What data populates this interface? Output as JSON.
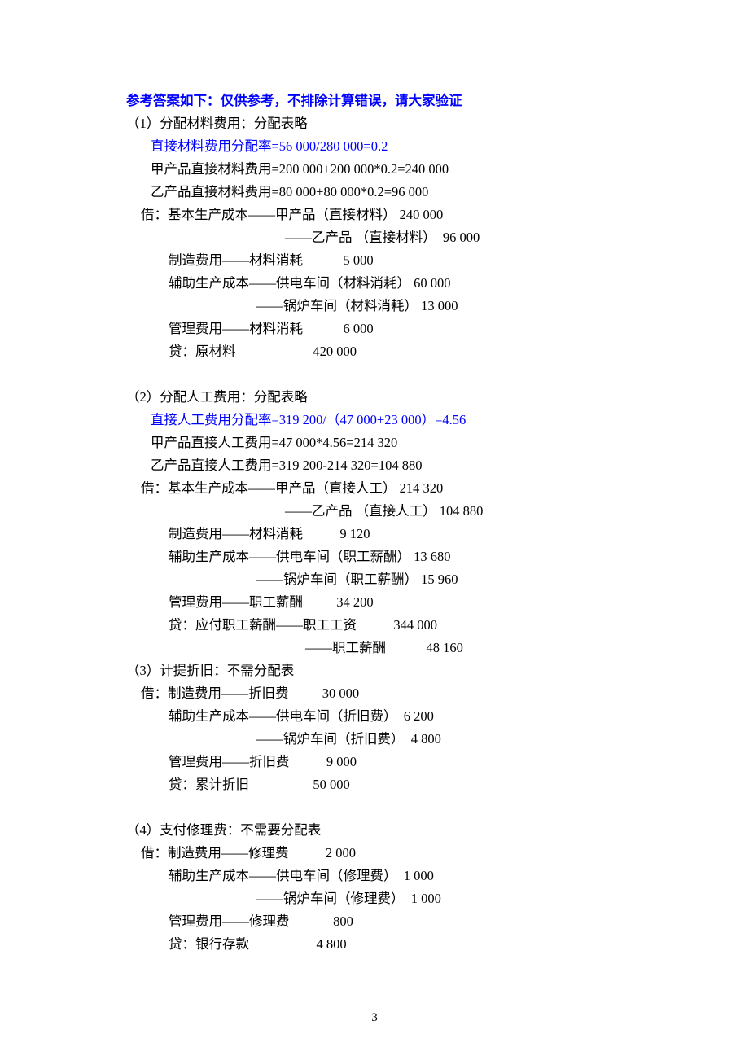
{
  "page_number": "3",
  "header": "参考答案如下：仅供参考，不排除计算错误，请大家验证",
  "sections": [
    {
      "title": "（1）分配材料费用：分配表略",
      "formula": "直接材料费用分配率=56 000/280 000=0.2",
      "calc": [
        "甲产品直接材料费用=200 000+200 000*0.2=240 000",
        "乙产品直接材料费用=80 000+80 000*0.2=96 000"
      ],
      "entries": [
        {
          "label": "借：基本生产成本——甲产品（直接材料）",
          "amount": " 240 000",
          "indent": "a"
        },
        {
          "label": "——乙产品 （直接材料）",
          "amount": "  96 000",
          "indent": "c"
        },
        {
          "label": "制造费用——材料消耗",
          "amount": "            5 000",
          "indent": "b"
        },
        {
          "label": "辅助生产成本——供电车间（材料消耗）",
          "amount": " 60 000",
          "indent": "b"
        },
        {
          "label": "——锅炉车间（材料消耗）",
          "amount": " 13 000",
          "indent": "d"
        },
        {
          "label": "管理费用——材料消耗",
          "amount": "            6 000",
          "indent": "b"
        },
        {
          "label": "贷：原材料",
          "amount": "                       420 000",
          "indent": "b"
        }
      ],
      "gap_after": true
    },
    {
      "title": "（2）分配人工费用：分配表略",
      "formula": "直接人工费用分配率=319 200/（47 000+23 000）=4.56",
      "calc": [
        "甲产品直接人工费用=47 000*4.56=214 320",
        "乙产品直接人工费用=319 200-214 320=104 880"
      ],
      "entries": [
        {
          "label": "借：基本生产成本——甲产品（直接人工）",
          "amount": " 214 320",
          "indent": "a"
        },
        {
          "label": "——乙产品 （直接人工）",
          "amount": " 104 880",
          "indent": "c"
        },
        {
          "label": "制造费用——材料消耗",
          "amount": "           9 120",
          "indent": "b"
        },
        {
          "label": "辅助生产成本——供电车间（职工薪酬）",
          "amount": " 13 680",
          "indent": "b"
        },
        {
          "label": "——锅炉车间（职工薪酬）",
          "amount": " 15 960",
          "indent": "d"
        },
        {
          "label": "管理费用——职工薪酬",
          "amount": "          34 200",
          "indent": "b"
        },
        {
          "label": "贷：应付职工薪酬——职工工资",
          "amount": "           344 000",
          "indent": "b"
        },
        {
          "label": "——职工薪酬",
          "amount": "            48 160",
          "indent": "e"
        }
      ],
      "gap_after": false
    },
    {
      "title": "（3）计提折旧：不需分配表",
      "formula": "",
      "calc": [],
      "entries": [
        {
          "label": "借：制造费用——折旧费",
          "amount": "          30 000",
          "indent": "a"
        },
        {
          "label": "辅助生产成本——供电车间（折旧费）",
          "amount": "  6 200",
          "indent": "b"
        },
        {
          "label": "——锅炉车间（折旧费）",
          "amount": "  4 800",
          "indent": "d"
        },
        {
          "label": "管理费用——折旧费",
          "amount": "           9 000",
          "indent": "b"
        },
        {
          "label": "贷：累计折旧",
          "amount": "                   50 000",
          "indent": "b"
        }
      ],
      "gap_after": true
    },
    {
      "title": "（4）支付修理费：不需要分配表",
      "formula": "",
      "calc": [],
      "entries": [
        {
          "label": "借：制造费用——修理费",
          "amount": "           2 000",
          "indent": "a"
        },
        {
          "label": "辅助生产成本——供电车间（修理费）",
          "amount": "  1 000",
          "indent": "b"
        },
        {
          "label": "——锅炉车间（修理费）",
          "amount": "  1 000",
          "indent": "d"
        },
        {
          "label": "管理费用——修理费",
          "amount": "             800",
          "indent": "b"
        },
        {
          "label": "贷：银行存款",
          "amount": "                    4 800",
          "indent": "b"
        }
      ],
      "gap_after": false
    }
  ],
  "indents": {
    "a": 18,
    "b": 52,
    "c": 195,
    "d": 160,
    "e": 220
  }
}
